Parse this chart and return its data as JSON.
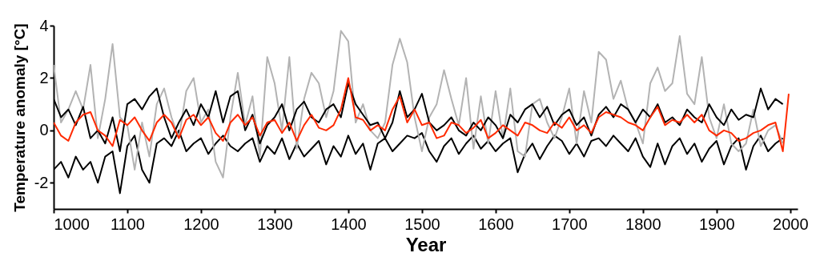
{
  "chart_data": {
    "type": "line",
    "xlabel": "Year",
    "ylabel": "Temperature anomaly [°C]",
    "xlim": [
      1000,
      2010
    ],
    "ylim": [
      -3,
      4
    ],
    "xticks": [
      1000,
      1100,
      1200,
      1300,
      1400,
      1500,
      1600,
      1700,
      1800,
      1900,
      2000
    ],
    "yticks": [
      -2,
      0,
      2,
      4
    ],
    "grid": false,
    "line_style": "solid",
    "x": [
      1000,
      1010,
      1020,
      1030,
      1040,
      1050,
      1060,
      1070,
      1080,
      1090,
      1100,
      1110,
      1120,
      1130,
      1140,
      1150,
      1160,
      1170,
      1180,
      1190,
      1200,
      1210,
      1220,
      1230,
      1240,
      1250,
      1260,
      1270,
      1280,
      1290,
      1300,
      1310,
      1320,
      1330,
      1340,
      1350,
      1360,
      1370,
      1380,
      1390,
      1400,
      1410,
      1420,
      1430,
      1440,
      1450,
      1460,
      1470,
      1480,
      1490,
      1500,
      1510,
      1520,
      1530,
      1540,
      1550,
      1560,
      1570,
      1580,
      1590,
      1600,
      1610,
      1620,
      1630,
      1640,
      1650,
      1660,
      1670,
      1680,
      1690,
      1700,
      1710,
      1720,
      1730,
      1740,
      1750,
      1760,
      1770,
      1780,
      1790,
      1800,
      1810,
      1820,
      1830,
      1840,
      1850,
      1860,
      1870,
      1880,
      1890,
      1900,
      1910,
      1920,
      1930,
      1940,
      1950,
      1960,
      1970,
      1980,
      1990
    ],
    "series": [
      {
        "color": "#000000",
        "values": [
          -1.5,
          -1.2,
          -1.8,
          -1.0,
          -1.5,
          -1.2,
          -2.0,
          -1.0,
          -0.8,
          -2.4,
          -0.6,
          -0.2,
          -1.5,
          -2.0,
          -0.5,
          -0.3,
          -0.6,
          0.0,
          -0.8,
          -0.5,
          -0.3,
          -0.9,
          -0.5,
          -0.2,
          -0.6,
          -0.8,
          -0.5,
          -0.3,
          -1.2,
          -0.6,
          -0.9,
          -0.3,
          -1.1,
          -0.5,
          -1.0,
          -0.7,
          -0.4,
          -1.3,
          -0.6,
          -1.0,
          -0.2,
          -0.9,
          -0.5,
          -1.5,
          -0.5,
          -0.3,
          -0.8,
          -0.5,
          -0.2,
          -0.3,
          -0.1,
          -0.8,
          -1.2,
          -0.6,
          -0.3,
          -0.9,
          -0.5,
          -0.2,
          -0.7,
          -0.4,
          -0.8,
          -0.5,
          -0.3,
          -1.6,
          -0.9,
          -0.5,
          -1.1,
          -0.6,
          -0.2,
          -0.4,
          -0.9,
          -0.5,
          -1.0,
          -0.4,
          -0.3,
          -0.6,
          -0.2,
          -0.5,
          -0.8,
          -0.3,
          -1.0,
          -1.4,
          -0.5,
          -1.3,
          -0.6,
          -0.3,
          -0.9,
          -0.5,
          -1.2,
          -0.7,
          -0.4,
          -1.3,
          -0.6,
          -0.3,
          -1.5,
          -0.6,
          -0.2,
          -0.8,
          -0.5,
          -0.3
        ]
      },
      {
        "color": "#b3b3b3",
        "values": [
          2.5,
          0.3,
          0.8,
          1.5,
          0.8,
          2.5,
          -0.3,
          1.2,
          3.3,
          0.5,
          0.2,
          -1.5,
          0.3,
          -1.0,
          1.0,
          1.6,
          0.5,
          -0.3,
          1.5,
          2.0,
          0.3,
          0.8,
          -1.2,
          -1.8,
          0.5,
          2.2,
          0.2,
          1.3,
          -1.0,
          2.8,
          1.8,
          0.0,
          2.8,
          -0.7,
          1.2,
          2.2,
          1.8,
          0.5,
          1.5,
          3.8,
          3.4,
          0.3,
          1.0,
          0.0,
          -0.3,
          0.3,
          2.5,
          3.5,
          2.6,
          0.5,
          -0.8,
          0.5,
          1.0,
          2.3,
          1.2,
          0.2,
          2.0,
          -0.7,
          1.3,
          -0.5,
          1.5,
          -0.3,
          1.6,
          -0.8,
          -1.0,
          1.0,
          1.2,
          0.3,
          -0.3,
          0.5,
          1.6,
          -0.5,
          1.5,
          0.3,
          3.0,
          2.7,
          1.2,
          1.9,
          0.8,
          0.3,
          -0.5,
          1.8,
          2.4,
          1.5,
          1.8,
          3.6,
          1.4,
          1.0,
          2.8,
          0.5,
          -0.3,
          1.0,
          -0.5,
          -0.8,
          -0.5,
          0.8,
          -0.6,
          0.0,
          0.2,
          -0.5
        ]
      },
      {
        "color": "#000000",
        "values": [
          1.2,
          0.5,
          0.8,
          0.2,
          0.9,
          -0.3,
          0.0,
          -0.5,
          0.5,
          -0.8,
          1.0,
          1.2,
          0.8,
          1.3,
          1.6,
          0.5,
          -0.3,
          0.3,
          0.8,
          0.2,
          1.0,
          0.5,
          1.5,
          0.3,
          1.3,
          1.5,
          0.0,
          0.6,
          -0.5,
          0.2,
          0.5,
          1.0,
          0.0,
          0.8,
          1.1,
          0.5,
          0.3,
          0.8,
          1.0,
          0.5,
          1.8,
          1.0,
          0.6,
          0.2,
          0.3,
          -0.3,
          0.3,
          1.5,
          0.5,
          0.8,
          1.4,
          0.3,
          0.0,
          0.2,
          0.5,
          0.0,
          -0.2,
          0.3,
          0.0,
          0.5,
          0.2,
          -0.3,
          0.6,
          0.3,
          0.8,
          1.0,
          0.5,
          0.9,
          0.2,
          0.6,
          0.8,
          0.2,
          0.5,
          -0.2,
          0.6,
          0.9,
          0.5,
          1.0,
          0.8,
          0.3,
          0.8,
          0.5,
          1.0,
          0.3,
          0.5,
          0.2,
          0.8,
          0.5,
          0.3,
          1.0,
          0.5,
          0.2,
          0.8,
          0.4,
          0.6,
          0.5,
          1.6,
          0.8,
          1.2,
          1.0
        ]
      },
      {
        "color": "#ff2a00",
        "x": [
          1000,
          1010,
          1020,
          1030,
          1040,
          1050,
          1060,
          1070,
          1080,
          1090,
          1100,
          1110,
          1120,
          1130,
          1140,
          1150,
          1160,
          1170,
          1180,
          1190,
          1200,
          1210,
          1220,
          1230,
          1240,
          1250,
          1260,
          1270,
          1280,
          1290,
          1300,
          1310,
          1320,
          1330,
          1340,
          1350,
          1360,
          1370,
          1380,
          1390,
          1400,
          1410,
          1420,
          1430,
          1440,
          1450,
          1460,
          1470,
          1480,
          1490,
          1500,
          1510,
          1520,
          1530,
          1540,
          1550,
          1560,
          1570,
          1580,
          1590,
          1600,
          1610,
          1620,
          1630,
          1640,
          1650,
          1660,
          1670,
          1680,
          1690,
          1700,
          1710,
          1720,
          1730,
          1740,
          1750,
          1760,
          1770,
          1780,
          1790,
          1800,
          1810,
          1820,
          1830,
          1840,
          1850,
          1860,
          1870,
          1880,
          1890,
          1900,
          1910,
          1920,
          1930,
          1940,
          1950,
          1960,
          1970,
          1980,
          1990,
          1998
        ],
        "values": [
          0.3,
          -0.2,
          -0.4,
          0.3,
          0.6,
          0.7,
          0.0,
          -0.2,
          -0.6,
          0.4,
          0.2,
          0.5,
          0.0,
          -0.4,
          0.3,
          0.6,
          0.3,
          -0.3,
          0.4,
          0.6,
          0.2,
          0.5,
          -0.1,
          -0.4,
          0.3,
          0.6,
          0.2,
          0.5,
          -0.2,
          0.3,
          0.4,
          -0.1,
          0.3,
          -0.4,
          0.2,
          0.6,
          0.1,
          0.0,
          0.2,
          0.8,
          2.0,
          0.5,
          0.4,
          0.0,
          0.2,
          0.0,
          0.8,
          1.3,
          0.3,
          0.8,
          0.2,
          0.3,
          -0.3,
          -0.2,
          0.3,
          0.2,
          -0.1,
          0.1,
          0.4,
          -0.3,
          -0.1,
          0.2,
          0.0,
          -0.2,
          0.3,
          0.2,
          0.0,
          -0.1,
          0.3,
          0.1,
          0.5,
          0.0,
          0.2,
          -0.1,
          0.5,
          0.7,
          0.6,
          0.5,
          0.3,
          0.2,
          0.0,
          0.5,
          0.9,
          0.2,
          0.4,
          0.3,
          0.6,
          0.3,
          0.6,
          0.0,
          -0.2,
          0.0,
          -0.1,
          -0.4,
          -0.3,
          -0.1,
          0.0,
          0.2,
          0.3,
          -0.8,
          1.4
        ]
      }
    ]
  }
}
